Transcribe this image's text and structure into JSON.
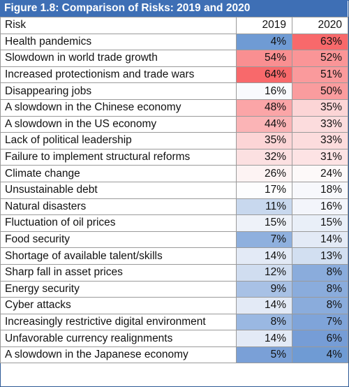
{
  "title": "Figure 1.8: Comparison of Risks: 2019 and 2020",
  "headers": [
    "Risk",
    "2019",
    "2020"
  ],
  "rows": [
    {
      "risk": "Health pandemics",
      "v2019": "4%",
      "v2020": "63%",
      "c2019": "#6f9bd4",
      "c2020": "#f8696b"
    },
    {
      "risk": "Slowdown in world trade growth",
      "v2019": "54%",
      "v2020": "52%",
      "c2019": "#f98f91",
      "c2020": "#fa9597"
    },
    {
      "risk": "Increased protectionism and trade wars",
      "v2019": "64%",
      "v2020": "51%",
      "c2019": "#f8696b",
      "c2020": "#fa9a9c"
    },
    {
      "risk": "Disappearing jobs",
      "v2019": "16%",
      "v2020": "50%",
      "c2019": "#f9fafd",
      "c2020": "#fa9c9e"
    },
    {
      "risk": "A slowdown in the Chinese economy",
      "v2019": "48%",
      "v2020": "35%",
      "c2019": "#fba5a7",
      "c2020": "#fcd5d6"
    },
    {
      "risk": "A slowdown in the US economy",
      "v2019": "44%",
      "v2020": "33%",
      "c2019": "#fbb4b6",
      "c2020": "#fcdcdd"
    },
    {
      "risk": "Lack of political leadership",
      "v2019": "35%",
      "v2020": "33%",
      "c2019": "#fcd5d6",
      "c2020": "#fcdcdd"
    },
    {
      "risk": "Failure to implement structural reforms",
      "v2019": "32%",
      "v2020": "31%",
      "c2019": "#fce0e1",
      "c2020": "#fde3e4"
    },
    {
      "risk": "Climate change",
      "v2019": "26%",
      "v2020": "24%",
      "c2019": "#fdf3f3",
      "c2020": "#fdf9f9"
    },
    {
      "risk": "Unsustainable debt",
      "v2019": "17%",
      "v2020": "18%",
      "c2019": "#fdfdfe",
      "c2020": "#f7f8fc"
    },
    {
      "risk": "Natural disasters",
      "v2019": "11%",
      "v2020": "16%",
      "c2019": "#c8d8ee",
      "c2020": "#f3f5fb"
    },
    {
      "risk": "Fluctuation of oil prices",
      "v2019": "15%",
      "v2020": "15%",
      "c2019": "#eef2f9",
      "c2020": "#e9eff8"
    },
    {
      "risk": "Food security",
      "v2019": "7%",
      "v2020": "14%",
      "c2019": "#8fb0de",
      "c2020": "#e3eaf6"
    },
    {
      "risk": "Shortage of available talent/skills",
      "v2019": "14%",
      "v2020": "13%",
      "c2019": "#e3eaf6",
      "c2020": "#d2dff1"
    },
    {
      "risk": "Sharp fall in asset prices",
      "v2019": "12%",
      "v2020": "8%",
      "c2019": "#d0ddf0",
      "c2020": "#8aacdc"
    },
    {
      "risk": "Energy security",
      "v2019": "9%",
      "v2020": "8%",
      "c2019": "#a8c1e5",
      "c2020": "#8aacdc"
    },
    {
      "risk": "Cyber attacks",
      "v2019": "14%",
      "v2020": "8%",
      "c2019": "#e3eaf6",
      "c2020": "#8aacdc"
    },
    {
      "risk": "Increasingly restrictive digital environment",
      "v2019": "8%",
      "v2020": "7%",
      "c2019": "#9ab8e2",
      "c2020": "#7fa4d9"
    },
    {
      "risk": "Unfavorable currency realignments",
      "v2019": "14%",
      "v2020": "6%",
      "c2019": "#e3eaf6",
      "c2020": "#769dd6"
    },
    {
      "risk": "A slowdown in the Japanese economy",
      "v2019": "5%",
      "v2020": "4%",
      "c2019": "#7aa0d7",
      "c2020": "#6f9bd4"
    }
  ]
}
